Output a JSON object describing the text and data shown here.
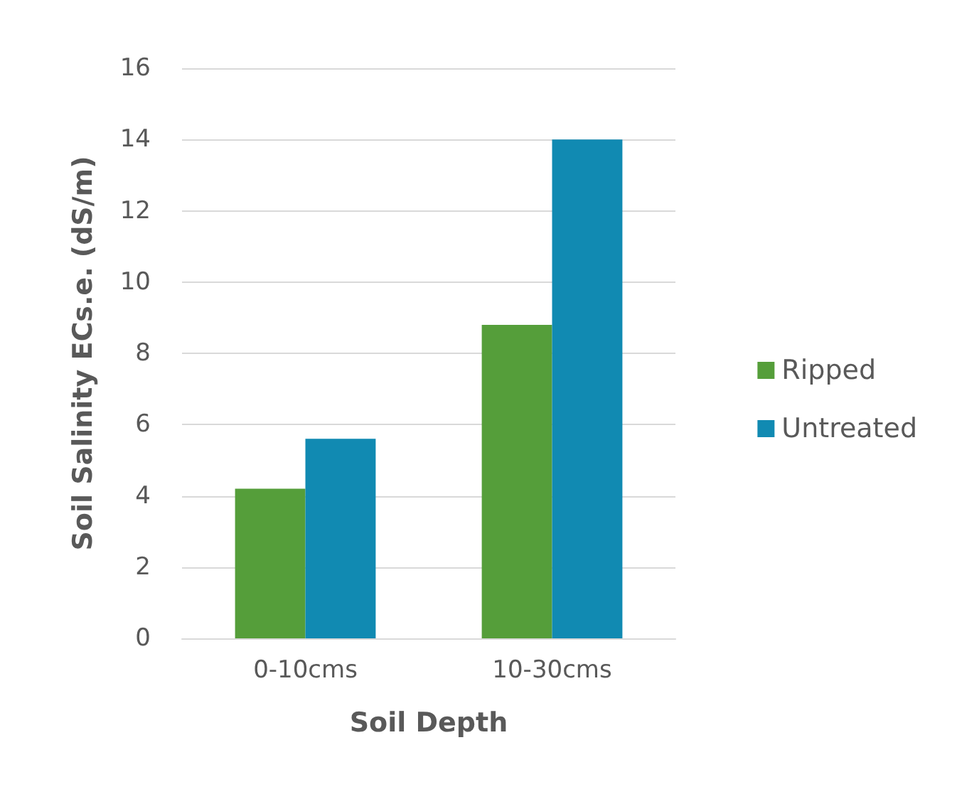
{
  "chart_data": {
    "type": "bar",
    "xlabel": "Soil Depth",
    "ylabel": "Soil Salinity ECs.e. (dS/m)",
    "categories": [
      "0-10cms",
      "10-30cms"
    ],
    "series": [
      {
        "name": "Ripped",
        "color": "#559e3a",
        "values": [
          4.2,
          8.8
        ]
      },
      {
        "name": "Untreated",
        "color": "#118ab2",
        "values": [
          5.6,
          14.0
        ]
      }
    ],
    "ylim": [
      0,
      16
    ],
    "yticks": [
      0,
      2,
      4,
      6,
      8,
      10,
      12,
      14,
      16
    ],
    "grid": "y",
    "legend": "right"
  }
}
